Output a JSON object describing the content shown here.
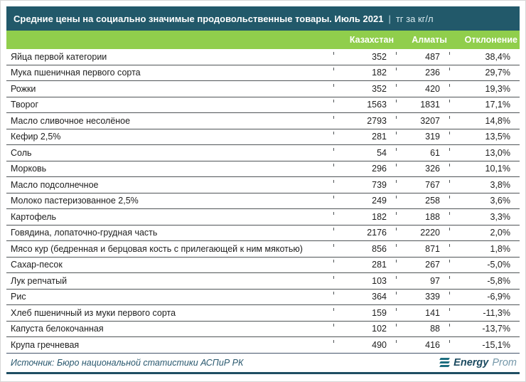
{
  "header": {
    "title": "Средние цены на социально значимые продовольственные товары. Июль 2021",
    "separator": "|",
    "unit": "тг за кг/л"
  },
  "footer": {
    "source": "Источник: Бюро национальной статистики АСПиР РК",
    "logo_bold": "Energy",
    "logo_light": "Prom"
  },
  "colors": {
    "title_bar_bg": "#22596A",
    "header_row_bg": "#90CE4C",
    "header_text": "#ffffff",
    "row_text": "#1E1E1E",
    "row_separator": "#4F5457",
    "bottom_rule": "#1F4E63",
    "source_text": "#29586E",
    "logo_teal": "#1E6E80",
    "logo_prom": "#7497A9"
  },
  "chart_data": {
    "type": "table",
    "title": "Средние цены на социально значимые продовольственные товары. Июль 2021 | тг за кг/л",
    "columns": [
      "",
      "Казахстан",
      "Алматы",
      "Отклонение"
    ],
    "rows": [
      [
        "Яйца первой категории",
        352,
        487,
        "38,4%"
      ],
      [
        "Мука пшеничная первого сорта",
        182,
        236,
        "29,7%"
      ],
      [
        "Рожки",
        352,
        420,
        "19,3%"
      ],
      [
        "Творог",
        1563,
        1831,
        "17,1%"
      ],
      [
        "Масло сливочное несолёное",
        2793,
        3207,
        "14,8%"
      ],
      [
        "Кефир 2,5%",
        281,
        319,
        "13,5%"
      ],
      [
        "Соль",
        54,
        61,
        "13,0%"
      ],
      [
        "Морковь",
        296,
        326,
        "10,1%"
      ],
      [
        "Масло подсолнечное",
        739,
        767,
        "3,8%"
      ],
      [
        "Молоко пастеризованное 2,5%",
        249,
        258,
        "3,6%"
      ],
      [
        "Картофель",
        182,
        188,
        "3,3%"
      ],
      [
        "Говядина, лопаточно-грудная часть",
        2176,
        2220,
        "2,0%"
      ],
      [
        "Мясо кур (бедренная и берцовая кость с прилегающей к ним мякотью)",
        856,
        871,
        "1,8%"
      ],
      [
        "Сахар-песок",
        281,
        267,
        "-5,0%"
      ],
      [
        "Лук репчатый",
        103,
        97,
        "-5,8%"
      ],
      [
        "Рис",
        364,
        339,
        "-6,9%"
      ],
      [
        "Хлеб пшеничный из муки первого сорта",
        159,
        141,
        "-11,3%"
      ],
      [
        "Капуста белокочанная",
        102,
        88,
        "-13,7%"
      ],
      [
        "Крупа гречневая",
        490,
        416,
        "-15,1%"
      ]
    ]
  }
}
